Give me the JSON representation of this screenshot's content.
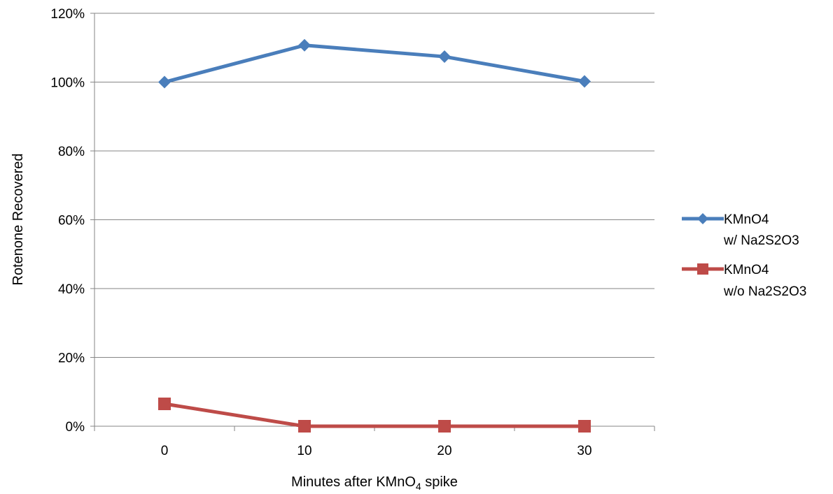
{
  "chart_data": {
    "type": "line",
    "title": "",
    "xlabel_main": "Minutes after KMnO",
    "xlabel_sub": "4",
    "xlabel_tail": " spike",
    "ylabel": "Rotenone Recovered",
    "categories": [
      "0",
      "10",
      "20",
      "30"
    ],
    "yticks": [
      "0%",
      "20%",
      "40%",
      "60%",
      "80%",
      "100%",
      "120%"
    ],
    "ylim": [
      0,
      120
    ],
    "grid": "horizontal",
    "legend_position": "right",
    "series": [
      {
        "name_line1": "KMnO4",
        "name_line2": "w/ Na2S2O3",
        "values": [
          100,
          110.7,
          107.4,
          100.2
        ],
        "color": "#4a7ebb",
        "marker": "diamond"
      },
      {
        "name_line1": "KMnO4",
        "name_line2": "w/o Na2S2O3",
        "values": [
          6.5,
          0,
          0,
          0
        ],
        "color": "#be4b48",
        "marker": "square"
      }
    ]
  }
}
